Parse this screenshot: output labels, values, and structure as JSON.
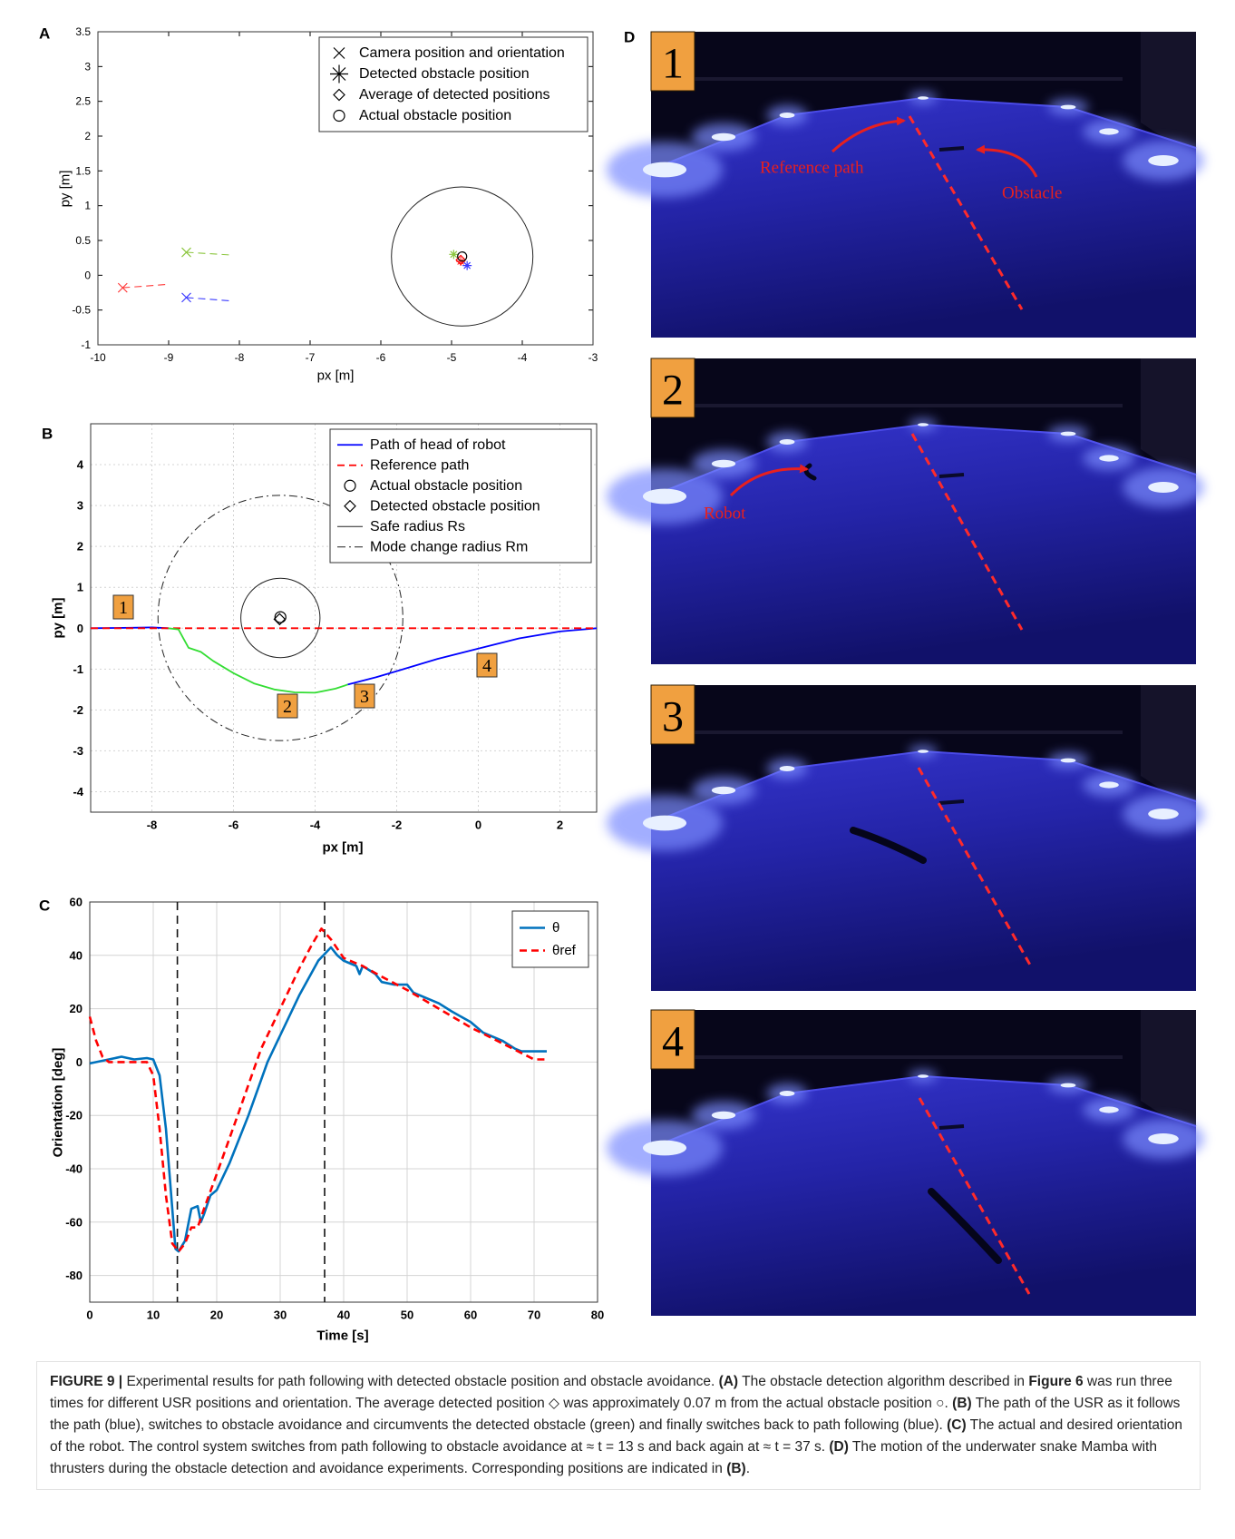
{
  "chart_data": [
    {
      "type": "scatter",
      "panel": "A",
      "x_label": "px [m]",
      "y_label": "py [m]",
      "xlim": [
        -10,
        -3
      ],
      "ylim": [
        -1,
        3.5
      ],
      "xticks": [
        -10,
        -9,
        -8,
        -7,
        -6,
        -5,
        -4,
        -3
      ],
      "yticks": [
        -1,
        -0.5,
        0,
        0.5,
        1,
        1.5,
        2,
        2.5,
        3,
        3.5
      ],
      "grid": false,
      "legend_loc": "upper right",
      "series": [
        {
          "color": "#ff3b3b",
          "dash": "dashed",
          "x": [
            -9.65,
            -9.0
          ],
          "y": [
            -0.18,
            -0.13
          ]
        },
        {
          "color": "#8cc63f",
          "dash": "dashed",
          "x": [
            -8.75,
            -8.1
          ],
          "y": [
            0.33,
            0.29
          ]
        },
        {
          "color": "#3b3bff",
          "dash": "dashed",
          "x": [
            -8.75,
            -8.1
          ],
          "y": [
            -0.32,
            -0.37
          ]
        }
      ],
      "points": [
        {
          "name": "Camera position and orientation",
          "marker": "x",
          "colors": [
            "#ff3b3b",
            "#8cc63f",
            "#3b3bff"
          ],
          "x": [
            -9.65,
            -8.75,
            -8.75
          ],
          "y": [
            -0.18,
            0.33,
            -0.32
          ]
        },
        {
          "name": "Detected obstacle position",
          "marker": "asterisk",
          "colors": [
            "#8cc63f",
            "#ff3b3b",
            "#3b3bff"
          ],
          "x": [
            -4.97,
            -4.87,
            -4.78
          ],
          "y": [
            0.3,
            0.2,
            0.14
          ]
        },
        {
          "name": "Average of detected positions",
          "marker": "diamond",
          "colors": [
            "#ff0000"
          ],
          "x": [
            -4.87
          ],
          "y": [
            0.22
          ]
        },
        {
          "name": "Actual obstacle position",
          "marker": "circle",
          "colors": [
            "#000000"
          ],
          "x": [
            -4.85
          ],
          "y": [
            0.27
          ]
        }
      ],
      "circles": [
        {
          "x": -4.85,
          "y": 0.27,
          "r": 1.0,
          "dash": "solid"
        }
      ]
    },
    {
      "type": "line",
      "panel": "B",
      "x_label": "px [m]",
      "y_label": "py [m]",
      "xlim": [
        -9.5,
        2.9
      ],
      "ylim": [
        -4.5,
        5
      ],
      "xticks": [
        -8,
        -6,
        -4,
        -2,
        0,
        2
      ],
      "yticks": [
        -4,
        -3,
        -2,
        -1,
        0,
        1,
        2,
        3,
        4
      ],
      "grid": true,
      "legend_loc": "upper right",
      "series": [
        {
          "name": "Path of head of robot",
          "color": "#0000ff",
          "dash": "solid",
          "x": [
            -9.5,
            -8.5,
            -8,
            -7.6,
            null,
            -3.2,
            -2.5,
            -2,
            -1,
            0,
            1,
            2,
            2.9
          ],
          "y": [
            0,
            0.01,
            0.02,
            0,
            null,
            -1.38,
            -1.2,
            -1.05,
            -0.75,
            -0.5,
            -0.25,
            -0.08,
            0
          ]
        },
        {
          "name": "Reference path",
          "color": "#ff0000",
          "dash": "dashed",
          "x": [
            -9.5,
            2.9
          ],
          "y": [
            0,
            0
          ]
        },
        {
          "color": "#33dd33",
          "dash": "solid",
          "x": [
            -7.6,
            -7.35,
            -7.2,
            -7.1,
            -6.8,
            -6.5,
            -6,
            -5.5,
            -5,
            -4.5,
            -4,
            -3.5,
            -3.2
          ],
          "y": [
            0,
            -0.03,
            -0.3,
            -0.48,
            -0.58,
            -0.8,
            -1.1,
            -1.35,
            -1.5,
            -1.57,
            -1.58,
            -1.48,
            -1.38
          ]
        }
      ],
      "points": [
        {
          "name": "Actual obstacle position",
          "marker": "circle",
          "colors": [
            "#000000"
          ],
          "x": [
            -4.85
          ],
          "y": [
            0.27
          ]
        },
        {
          "name": "Detected obstacle position",
          "marker": "diamond",
          "colors": [
            "#000000"
          ],
          "x": [
            -4.87
          ],
          "y": [
            0.22
          ]
        }
      ],
      "circles": [
        {
          "name": "Safe radius Rs",
          "x": -4.85,
          "y": 0.25,
          "r": 0.97,
          "dash": "solid"
        },
        {
          "name": "Mode change radius Rm",
          "x": -4.85,
          "y": 0.25,
          "r": 3.0,
          "dash": "dashdot"
        }
      ],
      "annotations": [
        "1",
        "2",
        "3",
        "4"
      ]
    },
    {
      "type": "line",
      "panel": "C",
      "x_label": "Time [s]",
      "y_label": "Orientation [deg]",
      "xlim": [
        0,
        80
      ],
      "ylim": [
        -90,
        60
      ],
      "xticks": [
        0,
        10,
        20,
        30,
        40,
        50,
        60,
        70,
        80
      ],
      "yticks": [
        -80,
        -60,
        -40,
        -20,
        0,
        20,
        40,
        60
      ],
      "grid": true,
      "legend_loc": "upper right",
      "series": [
        {
          "name": "θ",
          "color": "#0072bd",
          "dash": "solid",
          "x": [
            0,
            3,
            5,
            7,
            9,
            10,
            11,
            12,
            13,
            13.5,
            14,
            15,
            16,
            17,
            17.5,
            18,
            19,
            20,
            22,
            25,
            28,
            30,
            33,
            36,
            38,
            39,
            40,
            42,
            42.5,
            43,
            45,
            46,
            48,
            50,
            51,
            53,
            55,
            57,
            60,
            62,
            65,
            67,
            68,
            72
          ],
          "y": [
            -0.5,
            1,
            2,
            1,
            1.5,
            1,
            -5,
            -25,
            -55,
            -70,
            -71,
            -67,
            -55,
            -54,
            -60,
            -57,
            -50,
            -48,
            -38,
            -20,
            0,
            10,
            25,
            38,
            43,
            40,
            38,
            36,
            33,
            36,
            33,
            30,
            29,
            29,
            26,
            24,
            22,
            19,
            15,
            11,
            8,
            5,
            4,
            4
          ]
        },
        {
          "name": "θref",
          "color": "#ff0000",
          "dash": "dashed",
          "x": [
            0,
            1,
            2,
            3,
            9,
            10,
            11,
            12,
            13,
            14,
            15,
            16,
            17,
            18,
            20,
            23,
            27,
            30,
            33,
            35,
            36.5,
            38,
            40,
            43,
            46,
            50,
            55,
            60,
            65,
            70,
            72
          ],
          "y": [
            17,
            8,
            2,
            0,
            0,
            -5,
            -25,
            -50,
            -68,
            -71,
            -68,
            -62,
            -62,
            -55,
            -42,
            -22,
            5,
            20,
            35,
            44,
            50,
            46,
            39,
            36,
            32,
            27,
            20,
            13,
            7,
            1,
            1
          ]
        }
      ],
      "vlines": [
        13.8,
        37
      ]
    }
  ],
  "panel_d": {
    "label": "D",
    "photos": [
      {
        "number": "1",
        "labels": [
          "Reference path",
          "Obstacle"
        ]
      },
      {
        "number": "2",
        "labels": [
          "Robot"
        ]
      },
      {
        "number": "3"
      },
      {
        "number": "4"
      }
    ]
  },
  "caption": {
    "parts": [
      "FIGURE 9 |",
      " Experimental results for path following with detected obstacle position and obstacle avoidance. ",
      "(A)",
      " The obstacle detection algorithm described in ",
      "Figure 6",
      " was run three times for different USR positions and orientation. The average detected position ◇ was approximately 0.07 m from the actual obstacle position ○. ",
      "(B)",
      " The path of the USR as it follows the path (blue), switches to obstacle avoidance and circumvents the detected obstacle (green) and finally switches back to path following (blue). ",
      "(C)",
      " The actual and desired orientation of the robot. The control system switches from path following to obstacle avoidance at ≈ t = 13 s and back again at ≈ t = 37 s. ",
      "(D)",
      " The motion of the underwater snake Mamba with thrusters during the obstacle detection and avoidance experiments. Corresponding positions are indicated in ",
      "(B)",
      "."
    ]
  }
}
